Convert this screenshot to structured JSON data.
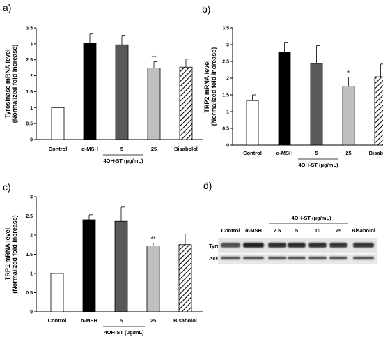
{
  "colors": {
    "control": "#ffffff",
    "msh": "#000000",
    "dose5": "#595959",
    "dose25": "#bfbfbf",
    "bisabolol_stroke": "#000000"
  },
  "chart_data": [
    {
      "panel": "a)",
      "type": "bar",
      "ylabel_line1": "Tyrosinase mRNA level",
      "ylabel_line2": "(Normalized fold increase)",
      "ylim": [
        0,
        3.5
      ],
      "yticks": [
        "0",
        "0.5",
        "1",
        "1.5",
        "2",
        "2.5",
        "3",
        "3.5"
      ],
      "categories": [
        "Control",
        "α-MSH",
        "5",
        "25",
        "Bisabolol"
      ],
      "values": [
        1.0,
        3.03,
        2.97,
        2.24,
        2.27
      ],
      "errors": [
        0,
        0.28,
        0.3,
        0.2,
        0.25
      ],
      "significance": [
        "",
        "",
        "",
        "**",
        ""
      ],
      "group_label": "4OH-ST (μg/mL)"
    },
    {
      "panel": "b)",
      "type": "bar",
      "ylabel_line1": "TRP2 mRNA level",
      "ylabel_line2": "(Normalized fold increase)",
      "ylim": [
        0,
        3.5
      ],
      "yticks": [
        "0",
        "0.5",
        "1",
        "1.5",
        "2",
        "2.5",
        "3",
        "3.5"
      ],
      "categories": [
        "Control",
        "α-MSH",
        "5",
        "25",
        "Bisabolol"
      ],
      "values": [
        1.33,
        2.77,
        2.44,
        1.76,
        2.04
      ],
      "errors": [
        0.17,
        0.3,
        0.53,
        0.27,
        0.38
      ],
      "significance": [
        "",
        "",
        "",
        "*",
        ""
      ],
      "group_label": "4OH-ST (μg/mL)"
    },
    {
      "panel": "c)",
      "type": "bar",
      "ylabel_line1": "TRP1 mRNA level",
      "ylabel_line2": "(Normalized fold increase)",
      "ylim": [
        0,
        3
      ],
      "yticks": [
        "0",
        "0.5",
        "1",
        "1.5",
        "2",
        "2.5",
        "3"
      ],
      "categories": [
        "Control",
        "α-MSH",
        "5",
        "25",
        "Bisabolol"
      ],
      "values": [
        1.0,
        2.4,
        2.36,
        1.72,
        1.75
      ],
      "errors": [
        0,
        0.13,
        0.37,
        0.07,
        0.28
      ],
      "significance": [
        "",
        "",
        "",
        "**",
        ""
      ],
      "group_label": "4OH-ST (μg/mL)"
    }
  ],
  "blot": {
    "panel": "d)",
    "group_label": "4OH-ST (μg/mL)",
    "lanes": [
      "Control",
      "α-MSH",
      "2.5",
      "5",
      "10",
      "25",
      "Bisabolol"
    ],
    "rows": [
      "Tyrosinase",
      "Actin"
    ],
    "tyrosinase_intensity": [
      0.55,
      0.95,
      0.85,
      0.9,
      0.85,
      0.8,
      0.8
    ],
    "actin_intensity": [
      0.7,
      0.75,
      0.7,
      0.75,
      0.75,
      0.75,
      0.75
    ]
  }
}
